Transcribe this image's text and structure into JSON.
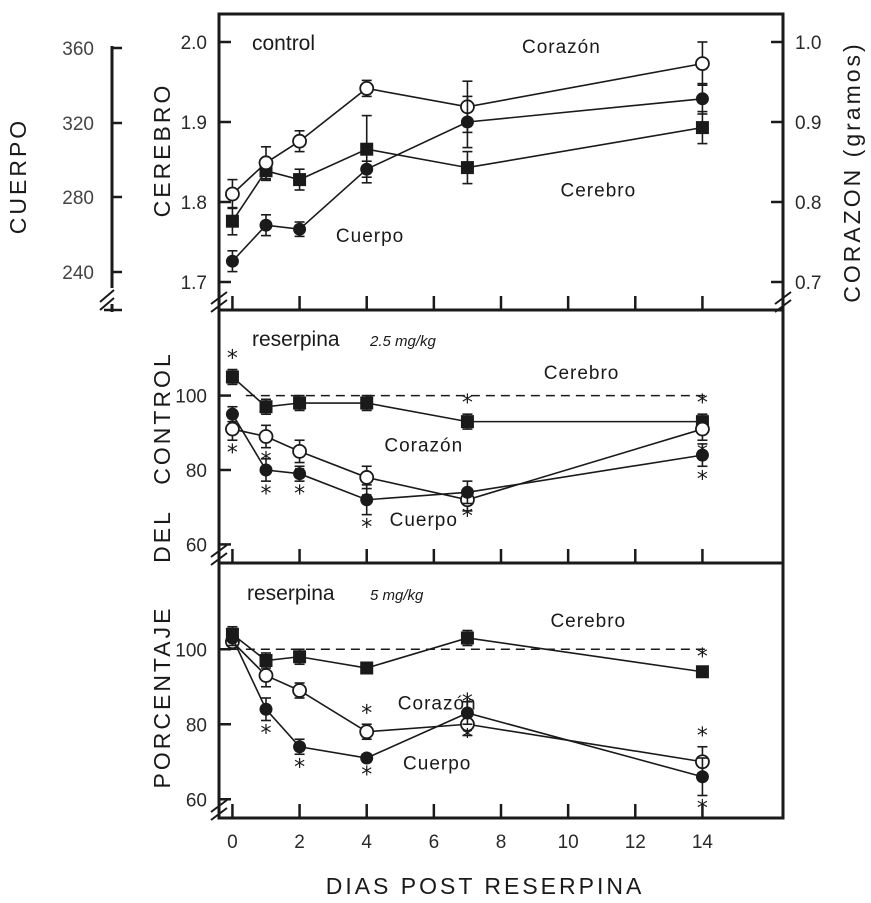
{
  "figure": {
    "xlabel": "DIAS  POST  RESERPINA",
    "left_outer_label": "CUERPO",
    "left_outer_ticks": [
      "360",
      "320",
      "280",
      "240"
    ],
    "percent_label_words": [
      "PORCENTAJE",
      "DEL",
      "CONTROL"
    ]
  },
  "chart_data": [
    {
      "type": "line",
      "panel_title": "control",
      "dose": "",
      "x_ticks": [
        0,
        2,
        4,
        6,
        8,
        10,
        12,
        14
      ],
      "xlim": [
        -0.4,
        16.4
      ],
      "ylabel_left": "CEREBRO",
      "ylabel_right": "CORAZON (gramos)",
      "left_ticks": [
        "2.0",
        "1.9",
        "1.8",
        "1.7"
      ],
      "right_ticks": [
        "1.0",
        "0.9",
        "0.8",
        "0.7"
      ],
      "ylim": [
        1.665,
        2.035
      ],
      "series": [
        {
          "name": "Cerebro",
          "marker": "square",
          "x": [
            0,
            1,
            2,
            4,
            7,
            14
          ],
          "y": [
            1.776,
            1.839,
            1.828,
            1.866,
            1.843,
            1.893
          ],
          "err": [
            0.017,
            0.012,
            0.013,
            0.042,
            0.02,
            0.02
          ]
        },
        {
          "name": "Corazón",
          "marker": "open-circle",
          "x": [
            0,
            1,
            2,
            4,
            7,
            14
          ],
          "y": [
            1.81,
            1.849,
            1.876,
            1.942,
            1.919,
            1.973
          ],
          "err": [
            0.018,
            0.02,
            0.013,
            0.01,
            0.032,
            0.027
          ]
        },
        {
          "name": "Cuerpo",
          "marker": "filled-circle",
          "x": [
            0,
            1,
            2,
            4,
            7,
            14
          ],
          "y": [
            1.726,
            1.771,
            1.766,
            1.841,
            1.9,
            1.929
          ],
          "err": [
            0.013,
            0.013,
            0.009,
            0.01,
            0.032,
            0.019
          ]
        }
      ],
      "annotations": [
        {
          "text": "Corazón",
          "x": 9.8,
          "y": 1.986
        },
        {
          "text": "Cerebro",
          "x": 10.9,
          "y": 1.807
        },
        {
          "text": "Cuerpo",
          "x": 4.1,
          "y": 1.75
        }
      ]
    },
    {
      "type": "line",
      "panel_title": "reserpina",
      "dose": "2.5 mg/kg",
      "x_ticks": [
        0,
        2,
        4,
        6,
        8,
        10,
        12,
        14
      ],
      "xlim": [
        -0.4,
        16.4
      ],
      "ylabel_left": "% del control",
      "y_ticks": [
        "100",
        "80",
        "60"
      ],
      "ylim": [
        55,
        123
      ],
      "reference_line": 100,
      "series": [
        {
          "name": "Cerebro",
          "marker": "square",
          "x": [
            0,
            1,
            2,
            4,
            7,
            14
          ],
          "y": [
            105,
            97,
            98,
            98,
            93,
            93
          ],
          "err": [
            2,
            2,
            2,
            2,
            2,
            2
          ],
          "significant": [
            true,
            false,
            false,
            false,
            true,
            true
          ]
        },
        {
          "name": "Corazón",
          "marker": "open-circle",
          "x": [
            0,
            1,
            2,
            4,
            7,
            14
          ],
          "y": [
            91,
            89,
            85,
            78,
            72,
            91
          ],
          "err": [
            3,
            3,
            3,
            3,
            3,
            3
          ],
          "significant": [
            true,
            true,
            true,
            true,
            false,
            true
          ]
        },
        {
          "name": "Cuerpo",
          "marker": "filled-circle",
          "x": [
            0,
            1,
            2,
            4,
            7,
            14
          ],
          "y": [
            95,
            80,
            79,
            72,
            74,
            84
          ],
          "err": [
            2,
            3,
            2,
            4,
            3,
            3
          ],
          "significant": [
            false,
            true,
            true,
            true,
            true,
            true
          ]
        }
      ],
      "annotations": [
        {
          "text": "Cerebro",
          "x": 10.4,
          "y": 104.5
        },
        {
          "text": "Corazón",
          "x": 5.7,
          "y": 85
        },
        {
          "text": "Cuerpo",
          "x": 5.7,
          "y": 65
        }
      ]
    },
    {
      "type": "line",
      "panel_title": "reserpina",
      "dose": "5 mg/kg",
      "x_ticks": [
        0,
        2,
        4,
        6,
        8,
        10,
        12,
        14
      ],
      "xlim": [
        -0.4,
        16.4
      ],
      "ylabel_left": "% del control",
      "y_ticks": [
        "100",
        "80",
        "60"
      ],
      "ylim": [
        55,
        123
      ],
      "reference_line": 100,
      "series": [
        {
          "name": "Cerebro",
          "marker": "square",
          "x": [
            0,
            1,
            2,
            4,
            7,
            14
          ],
          "y": [
            104,
            97,
            98,
            95,
            103,
            94
          ],
          "err": [
            2,
            2,
            2,
            1,
            2,
            1
          ],
          "significant": [
            false,
            false,
            false,
            false,
            false,
            true
          ]
        },
        {
          "name": "Corazón",
          "marker": "open-circle",
          "x": [
            0,
            1,
            2,
            4,
            7,
            14
          ],
          "y": [
            102,
            93,
            89,
            78,
            80,
            70
          ],
          "err": [
            2,
            3,
            2,
            2,
            3,
            4
          ],
          "significant": [
            false,
            false,
            false,
            true,
            true,
            true
          ]
        },
        {
          "name": "Cuerpo",
          "marker": "filled-circle",
          "x": [
            0,
            1,
            2,
            4,
            7,
            14
          ],
          "y": [
            103,
            84,
            74,
            71,
            83,
            66
          ],
          "err": [
            2,
            3,
            2,
            1,
            3,
            5
          ],
          "significant": [
            false,
            true,
            true,
            true,
            true,
            true
          ]
        }
      ],
      "annotations": [
        {
          "text": "Cerebro",
          "x": 10.6,
          "y": 106
        },
        {
          "text": "Corazón",
          "x": 6.1,
          "y": 84
        },
        {
          "text": "Cuerpo",
          "x": 6.1,
          "y": 68
        }
      ]
    }
  ]
}
